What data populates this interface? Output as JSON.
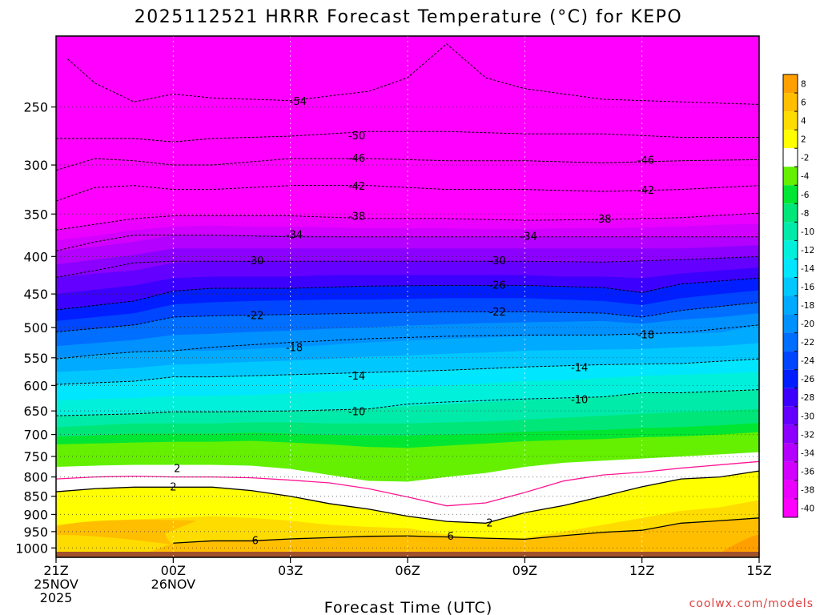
{
  "title": "2025112521 HRRR Forecast Temperature (°C) for KEPO",
  "watermark": "coolwx.com/models",
  "chart_data": {
    "type": "heatmap",
    "subtype": "filled contour time-height cross section",
    "title": "2025112521 HRRR Forecast Temperature (°C) for KEPO",
    "xlabel": "Forecast Time (UTC)",
    "ylabel": "",
    "x_range_hours": [
      0,
      18
    ],
    "x_ticks": [
      {
        "hour": 0,
        "lines": [
          "21Z",
          "25NOV",
          "2025"
        ]
      },
      {
        "hour": 3,
        "lines": [
          "00Z",
          "26NOV"
        ]
      },
      {
        "hour": 6,
        "lines": [
          "03Z"
        ]
      },
      {
        "hour": 9,
        "lines": [
          "06Z"
        ]
      },
      {
        "hour": 12,
        "lines": [
          "09Z"
        ]
      },
      {
        "hour": 15,
        "lines": [
          "12Z"
        ]
      },
      {
        "hour": 18,
        "lines": [
          "15Z"
        ]
      }
    ],
    "y_scale": "log pressure",
    "y_range": [
      1030,
      200
    ],
    "y_ticks": [
      250,
      300,
      350,
      400,
      450,
      500,
      550,
      600,
      650,
      700,
      750,
      800,
      850,
      900,
      950,
      1000
    ],
    "grid": true,
    "colorbar": {
      "labels": [
        "8",
        "6",
        "4",
        "2",
        "-2",
        "-4",
        "-6",
        "-8",
        "-10",
        "-12",
        "-14",
        "-16",
        "-18",
        "-20",
        "-22",
        "-24",
        "-26",
        "-28",
        "-30",
        "-32",
        "-34",
        "-36",
        "-38",
        "-40"
      ],
      "colors": [
        "#ffa000",
        "#ffbe00",
        "#ffdc00",
        "#ffff00",
        "#ffffff",
        "#64f000",
        "#00e632",
        "#00e678",
        "#00ebaa",
        "#00f0dc",
        "#00e6ff",
        "#00c8ff",
        "#00aaff",
        "#0091ff",
        "#006eff",
        "#0046ff",
        "#001eff",
        "#3c00ff",
        "#6400ff",
        "#8c00ff",
        "#b400ff",
        "#d200ff",
        "#eb00ff",
        "#ff00ff"
      ]
    },
    "series": [
      {
        "level": -54,
        "dashed": true,
        "x": [
          0.3,
          1,
          2,
          3,
          4,
          6,
          8,
          9,
          10,
          11,
          12,
          14,
          16,
          18
        ],
        "p": [
          215,
          232,
          246,
          240,
          243,
          245,
          238,
          228,
          205,
          228,
          236,
          244,
          246,
          248
        ]
      },
      {
        "level": -50,
        "dashed": true,
        "x": [
          0,
          2,
          3,
          4,
          6,
          8,
          10,
          12,
          14,
          16,
          18
        ],
        "p": [
          276,
          276,
          279,
          276,
          274,
          270,
          270,
          272,
          272,
          275,
          275
        ]
      },
      {
        "level": -46,
        "dashed": true,
        "x": [
          0,
          1,
          2,
          3,
          4,
          6,
          8,
          10,
          12,
          14,
          16,
          18
        ],
        "p": [
          305,
          294,
          296,
          300,
          300,
          294,
          294,
          296,
          296,
          298,
          296,
          295
        ]
      },
      {
        "level": -42,
        "dashed": true,
        "x": [
          0,
          1,
          2,
          3,
          4,
          6,
          8,
          10,
          12,
          14,
          16,
          18
        ],
        "p": [
          336,
          322,
          320,
          324,
          324,
          320,
          320,
          324,
          324,
          326,
          324,
          320
        ]
      },
      {
        "level": -38,
        "dashed": true,
        "x": [
          0,
          2,
          3,
          4,
          6,
          8,
          10,
          12,
          14,
          16,
          18
        ],
        "p": [
          368,
          355,
          352,
          352,
          352,
          355,
          355,
          357,
          356,
          354,
          349
        ]
      },
      {
        "level": -34,
        "dashed": true,
        "x": [
          0,
          1,
          2,
          3,
          4,
          6,
          8,
          10,
          12,
          14,
          16,
          18
        ],
        "p": [
          393,
          382,
          374,
          374,
          374,
          376,
          376,
          376,
          376,
          376,
          376,
          376
        ]
      },
      {
        "level": -30,
        "dashed": true,
        "x": [
          0,
          1,
          2,
          3,
          4,
          6,
          8,
          10,
          12,
          14,
          16,
          18
        ],
        "p": [
          427,
          418,
          408,
          406,
          406,
          406,
          406,
          406,
          406,
          407,
          404,
          400
        ]
      },
      {
        "level": -26,
        "dashed": true,
        "x": [
          0,
          2,
          3,
          4,
          6,
          8,
          10,
          12,
          14,
          15,
          16,
          18
        ],
        "p": [
          473,
          460,
          446,
          442,
          442,
          439,
          438,
          438,
          441,
          448,
          436,
          428
        ]
      },
      {
        "level": -22,
        "dashed": true,
        "x": [
          0,
          2,
          3,
          4,
          6,
          8,
          10,
          12,
          14,
          15,
          16,
          18
        ],
        "p": [
          507,
          496,
          484,
          482,
          480,
          478,
          476,
          476,
          478,
          484,
          474,
          462
        ]
      },
      {
        "level": -18,
        "dashed": true,
        "x": [
          0,
          1,
          2,
          3,
          4,
          6,
          8,
          10,
          12,
          14,
          16,
          18
        ],
        "p": [
          552,
          545,
          540,
          538,
          532,
          524,
          518,
          514,
          512,
          512,
          508,
          496
        ]
      },
      {
        "level": -14,
        "dashed": true,
        "x": [
          0,
          2,
          3,
          4,
          6,
          8,
          10,
          12,
          14,
          16,
          18
        ],
        "p": [
          598,
          592,
          584,
          584,
          580,
          576,
          572,
          566,
          562,
          560,
          552
        ]
      },
      {
        "level": -10,
        "dashed": true,
        "x": [
          0,
          2,
          3,
          4,
          6,
          8,
          9,
          10,
          12,
          14,
          15,
          16,
          18
        ],
        "p": [
          660,
          656,
          652,
          652,
          650,
          646,
          636,
          632,
          626,
          622,
          614,
          614,
          608
        ]
      },
      {
        "level": -2,
        "color": "#ff1493",
        "x": [
          0,
          1,
          2,
          3,
          4,
          5,
          6,
          7,
          8,
          9,
          10,
          11,
          12,
          13,
          14,
          15,
          16,
          17,
          18
        ],
        "p": [
          805,
          800,
          798,
          800,
          800,
          802,
          808,
          815,
          830,
          852,
          876,
          868,
          840,
          810,
          795,
          788,
          778,
          770,
          762
        ]
      },
      {
        "level": 2,
        "x": [
          0,
          1,
          2,
          3,
          4,
          5,
          6,
          7,
          8,
          9,
          10,
          11,
          12,
          13,
          14,
          15,
          16,
          17,
          18
        ],
        "p": [
          838,
          830,
          826,
          826,
          826,
          835,
          850,
          870,
          885,
          905,
          920,
          925,
          895,
          875,
          850,
          825,
          805,
          800,
          785
        ]
      },
      {
        "level": 6,
        "x": [
          3,
          4,
          5,
          6,
          7,
          8,
          9,
          10,
          11,
          12,
          13,
          14,
          15,
          16,
          17,
          18
        ],
        "p": [
          985,
          978,
          978,
          972,
          968,
          964,
          963,
          966,
          970,
          973,
          962,
          952,
          946,
          925,
          918,
          910
        ]
      }
    ],
    "bands_pressure_by_level": {
      "x": [
        0,
        1,
        2,
        3,
        4,
        5,
        6,
        7,
        8,
        9,
        10,
        11,
        12,
        13,
        14,
        15,
        16,
        17,
        18
      ],
      "6": [
        1030,
        1030,
        1030,
        985,
        978,
        978,
        972,
        968,
        964,
        963,
        966,
        970,
        973,
        962,
        952,
        946,
        925,
        918,
        910
      ],
      "4": [
        930,
        920,
        914,
        910,
        905,
        910,
        918,
        930,
        936,
        940,
        958,
        975,
        968,
        950,
        930,
        910,
        890,
        880,
        860
      ],
      "2": [
        838,
        830,
        826,
        826,
        826,
        835,
        850,
        870,
        885,
        905,
        920,
        925,
        895,
        875,
        850,
        825,
        805,
        800,
        785
      ],
      "-2": [
        775,
        772,
        770,
        770,
        770,
        772,
        780,
        795,
        810,
        812,
        800,
        790,
        775,
        765,
        760,
        755,
        750,
        745,
        740
      ],
      "-4": [
        722,
        720,
        718,
        716,
        716,
        714,
        718,
        722,
        728,
        730,
        725,
        720,
        715,
        712,
        710,
        706,
        704,
        700,
        695
      ],
      "-6": [
        705,
        702,
        698,
        698,
        698,
        696,
        698,
        701,
        702,
        702,
        700,
        698,
        694,
        692,
        690,
        686,
        684,
        680,
        675
      ],
      "-8": [
        684,
        680,
        676,
        676,
        676,
        674,
        674,
        676,
        676,
        676,
        674,
        672,
        668,
        664,
        660,
        656,
        652,
        650,
        646
      ],
      "-10": [
        660,
        658,
        656,
        652,
        652,
        652,
        650,
        648,
        646,
        640,
        636,
        632,
        628,
        626,
        622,
        614,
        614,
        610,
        608
      ],
      "-12": [
        629,
        626,
        624,
        620,
        620,
        618,
        615,
        612,
        608,
        604,
        600,
        596,
        592,
        590,
        586,
        582,
        580,
        578,
        575
      ],
      "-14": [
        598,
        595,
        592,
        584,
        584,
        582,
        580,
        578,
        576,
        574,
        572,
        570,
        566,
        564,
        562,
        560,
        560,
        556,
        552
      ],
      "-16": [
        575,
        572,
        568,
        562,
        560,
        557,
        555,
        552,
        548,
        546,
        543,
        541,
        538,
        537,
        536,
        535,
        532,
        530,
        525
      ],
      "-18": [
        552,
        545,
        540,
        538,
        538,
        535,
        532,
        528,
        524,
        521,
        518,
        516,
        514,
        513,
        512,
        512,
        510,
        508,
        496
      ],
      "-20": [
        530,
        525,
        520,
        512,
        510,
        507,
        505,
        502,
        500,
        497,
        495,
        493,
        492,
        491,
        490,
        494,
        488,
        484,
        478
      ],
      "-22": [
        507,
        502,
        496,
        484,
        482,
        481,
        480,
        479,
        478,
        477,
        476,
        476,
        476,
        477,
        478,
        484,
        474,
        468,
        462
      ],
      "-24": [
        490,
        484,
        478,
        465,
        462,
        460,
        459,
        458,
        458,
        457,
        456,
        456,
        456,
        458,
        460,
        466,
        456,
        450,
        445
      ],
      "-26": [
        473,
        466,
        460,
        446,
        442,
        442,
        442,
        440,
        439,
        438,
        438,
        438,
        438,
        440,
        441,
        448,
        436,
        432,
        428
      ],
      "-28": [
        450,
        444,
        438,
        428,
        426,
        426,
        426,
        424,
        424,
        424,
        424,
        424,
        424,
        426,
        426,
        428,
        422,
        418,
        414
      ],
      "-30": [
        427,
        422,
        418,
        408,
        406,
        406,
        406,
        406,
        406,
        406,
        406,
        406,
        406,
        407,
        407,
        406,
        404,
        402,
        400
      ],
      "-32": [
        410,
        404,
        398,
        390,
        390,
        390,
        390,
        390,
        390,
        390,
        390,
        390,
        390,
        390,
        390,
        390,
        390,
        388,
        386
      ],
      "-34": [
        393,
        388,
        382,
        374,
        374,
        374,
        374,
        375,
        376,
        376,
        376,
        376,
        376,
        376,
        376,
        376,
        376,
        376,
        376
      ],
      "-36": [
        380,
        375,
        368,
        364,
        363,
        364,
        364,
        365,
        366,
        366,
        366,
        367,
        367,
        366,
        366,
        365,
        364,
        362,
        361
      ],
      "-38": [
        368,
        361,
        355,
        352,
        352,
        352,
        352,
        354,
        355,
        355,
        355,
        356,
        357,
        356,
        356,
        355,
        354,
        352,
        349
      ]
    },
    "labels": [
      {
        "text": "-54",
        "x": 6.2,
        "p": 246
      },
      {
        "text": "-50",
        "x": 7.7,
        "p": 274
      },
      {
        "text": "-46",
        "x": 7.7,
        "p": 294
      },
      {
        "text": "-46",
        "x": 15.1,
        "p": 296
      },
      {
        "text": "-42",
        "x": 7.7,
        "p": 321
      },
      {
        "text": "-42",
        "x": 15.1,
        "p": 325
      },
      {
        "text": "-38",
        "x": 7.7,
        "p": 353
      },
      {
        "text": "-38",
        "x": 14.0,
        "p": 356
      },
      {
        "text": "-34",
        "x": 6.1,
        "p": 374
      },
      {
        "text": "-34",
        "x": 12.1,
        "p": 376
      },
      {
        "text": "-30",
        "x": 5.1,
        "p": 406
      },
      {
        "text": "-30",
        "x": 11.3,
        "p": 406
      },
      {
        "text": "-26",
        "x": 11.3,
        "p": 438
      },
      {
        "text": "-22",
        "x": 5.1,
        "p": 482
      },
      {
        "text": "-22",
        "x": 11.3,
        "p": 477
      },
      {
        "text": "-18",
        "x": 6.1,
        "p": 533
      },
      {
        "text": "-18",
        "x": 15.1,
        "p": 512
      },
      {
        "text": "-14",
        "x": 7.7,
        "p": 583
      },
      {
        "text": "-14",
        "x": 13.4,
        "p": 568
      },
      {
        "text": "-10",
        "x": 7.7,
        "p": 652
      },
      {
        "text": "-10",
        "x": 13.4,
        "p": 628
      },
      {
        "text": "2",
        "x": 3.1,
        "p": 780
      },
      {
        "text": "2",
        "x": 3.0,
        "p": 826
      },
      {
        "text": "2",
        "x": 11.1,
        "p": 925
      },
      {
        "text": "6",
        "x": 5.1,
        "p": 978
      },
      {
        "text": "6",
        "x": 10.1,
        "p": 965
      }
    ]
  }
}
